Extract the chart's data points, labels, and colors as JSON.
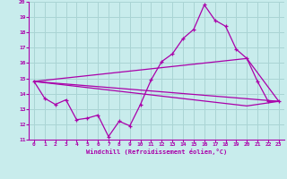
{
  "xlabel": "Windchill (Refroidissement éolien,°C)",
  "background_color": "#c8ecec",
  "grid_color": "#aad4d4",
  "line_color": "#aa00aa",
  "xlim": [
    -0.5,
    23.5
  ],
  "ylim": [
    11,
    20
  ],
  "xticks": [
    0,
    1,
    2,
    3,
    4,
    5,
    6,
    7,
    8,
    9,
    10,
    11,
    12,
    13,
    14,
    15,
    16,
    17,
    18,
    19,
    20,
    21,
    22,
    23
  ],
  "yticks": [
    11,
    12,
    13,
    14,
    15,
    16,
    17,
    18,
    19,
    20
  ],
  "line1_x": [
    0,
    1,
    2,
    3,
    4,
    5,
    6,
    7,
    8,
    9,
    10,
    11,
    12,
    13,
    14,
    15,
    16,
    17,
    18,
    19,
    20,
    21,
    22,
    23
  ],
  "line1_y": [
    14.8,
    13.7,
    13.3,
    13.6,
    12.3,
    12.4,
    12.6,
    11.2,
    12.2,
    11.9,
    13.3,
    14.9,
    16.1,
    16.6,
    17.6,
    18.2,
    19.8,
    18.8,
    18.4,
    16.9,
    16.3,
    14.8,
    13.5,
    13.5
  ],
  "line2_x": [
    0,
    23
  ],
  "line2_y": [
    14.8,
    13.5
  ],
  "line3_x": [
    0,
    20,
    23
  ],
  "line3_y": [
    14.8,
    16.3,
    13.5
  ],
  "line4_x": [
    0,
    20,
    23
  ],
  "line4_y": [
    14.8,
    13.2,
    13.5
  ]
}
